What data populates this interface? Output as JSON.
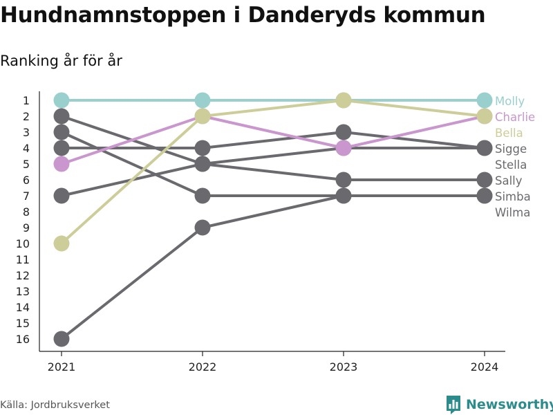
{
  "title": "Hundnamnstoppen i Danderyds kommun",
  "subtitle": "Ranking år för år",
  "source": "Källa: Jordbruksverket",
  "brand": "Newsworthy",
  "chart_data": {
    "type": "line",
    "x": [
      "2021",
      "2022",
      "2023",
      "2024"
    ],
    "y_ticks": [
      "1",
      "2",
      "3",
      "4",
      "5",
      "6",
      "7",
      "8",
      "9",
      "10",
      "11",
      "12",
      "13",
      "14",
      "15",
      "16"
    ],
    "y_reversed": true,
    "ylim": [
      1,
      16
    ],
    "legend": "direct-labels-right",
    "grid": false,
    "series": [
      {
        "name": "Molly",
        "values": [
          1,
          1,
          1,
          1
        ],
        "color": "#99cfcd"
      },
      {
        "name": "Charlie",
        "values": [
          5,
          2,
          4,
          2
        ],
        "color": "#c996cd"
      },
      {
        "name": "Bella",
        "values": [
          10,
          2,
          1,
          2
        ],
        "color": "#cdcd99"
      },
      {
        "name": "Sigge",
        "values": [
          4,
          4,
          3,
          4
        ],
        "color": "#6a696e"
      },
      {
        "name": "Stella",
        "values": [
          2,
          5,
          4,
          4
        ],
        "color": "#6a696e"
      },
      {
        "name": "Sally",
        "values": [
          7,
          5,
          6,
          6
        ],
        "color": "#6a696e"
      },
      {
        "name": "Simba",
        "values": [
          3,
          7,
          7,
          7
        ],
        "color": "#6a696e"
      },
      {
        "name": "Wilma",
        "values": [
          16,
          9,
          7,
          7
        ],
        "color": "#6a696e"
      }
    ]
  }
}
